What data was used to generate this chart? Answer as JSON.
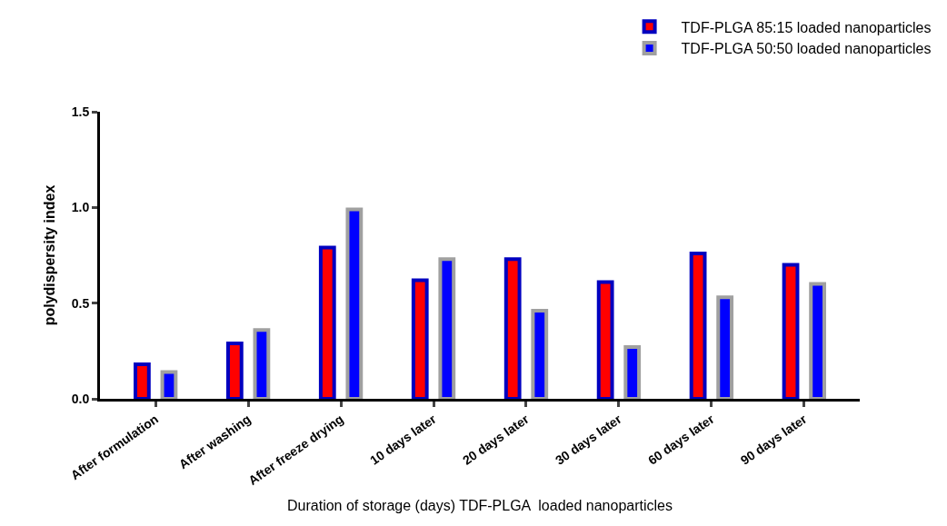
{
  "chart_data": {
    "type": "bar",
    "xlabel": "Duration of storage (days) TDF-PLGA  loaded nanoparticles",
    "ylabel": "polydispersity index",
    "categories": [
      "After formulation",
      "After washing",
      "After freeze drying",
      "10 days later",
      "20 days later",
      "30 days later",
      "60 days later",
      "90 days later"
    ],
    "series": [
      {
        "name": "TDF-PLGA 85:15 loaded nanoparticles",
        "color": "#ff0000",
        "values": [
          0.18,
          0.29,
          0.79,
          0.62,
          0.73,
          0.61,
          0.76,
          0.7
        ]
      },
      {
        "name": "TDF-PLGA 50:50 loaded nanoparticles",
        "color": "#0000ff",
        "values": [
          0.14,
          0.36,
          0.99,
          0.73,
          0.46,
          0.27,
          0.53,
          0.6
        ]
      }
    ],
    "ylim": [
      0,
      1.5
    ],
    "yticks": [
      {
        "value": 0,
        "label": "0.0"
      },
      {
        "value": 0.5,
        "label": "0.5"
      },
      {
        "value": 1,
        "label": "1.0"
      },
      {
        "value": 1.5,
        "label": "1.5"
      }
    ],
    "legend": "top right"
  }
}
